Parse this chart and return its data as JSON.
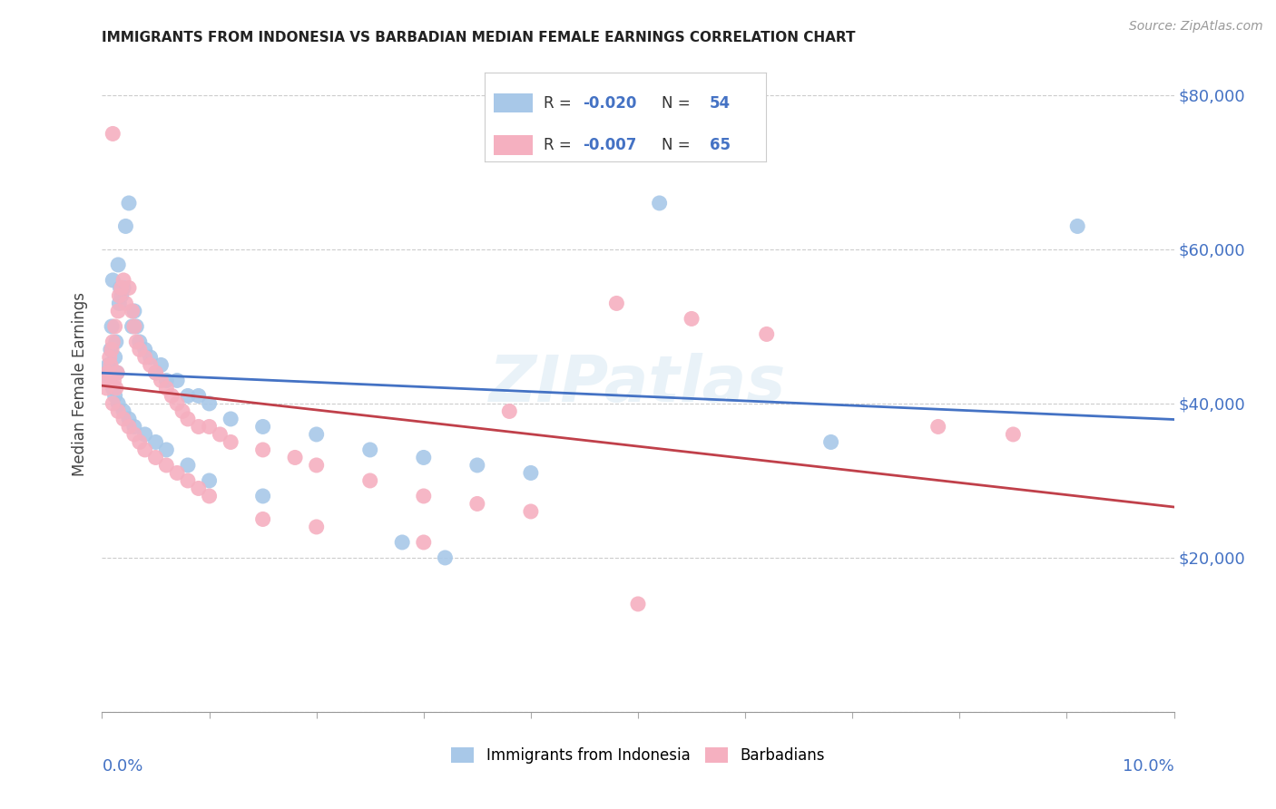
{
  "title": "IMMIGRANTS FROM INDONESIA VS BARBADIAN MEDIAN FEMALE EARNINGS CORRELATION CHART",
  "source": "Source: ZipAtlas.com",
  "ylabel": "Median Female Earnings",
  "xlim": [
    0.0,
    10.0
  ],
  "ylim": [
    0,
    85000
  ],
  "yticks": [
    0,
    20000,
    40000,
    60000,
    80000
  ],
  "ytick_labels": [
    "",
    "$20,000",
    "$40,000",
    "$60,000",
    "$80,000"
  ],
  "blue_color": "#a8c8e8",
  "pink_color": "#f5b0c0",
  "blue_line_color": "#4472c4",
  "pink_line_color": "#c0404a",
  "right_label_color": "#4472c4",
  "background_color": "#ffffff",
  "grid_color": "#cccccc",
  "title_color": "#222222",
  "watermark_text": "ZIPatlas",
  "legend_R1": "-0.020",
  "legend_N1": "54",
  "legend_R2": "-0.007",
  "legend_N2": "65",
  "blue_x": [
    0.05,
    0.06,
    0.07,
    0.08,
    0.09,
    0.1,
    0.11,
    0.12,
    0.13,
    0.14,
    0.15,
    0.16,
    0.17,
    0.18,
    0.2,
    0.22,
    0.25,
    0.28,
    0.3,
    0.32,
    0.35,
    0.4,
    0.45,
    0.5,
    0.55,
    0.6,
    0.7,
    0.8,
    0.9,
    1.0,
    1.2,
    1.5,
    2.0,
    2.5,
    3.0,
    3.5,
    4.0,
    5.2,
    9.1,
    0.1,
    0.12,
    0.15,
    0.2,
    0.25,
    0.3,
    0.4,
    0.5,
    0.6,
    0.8,
    1.0,
    1.5,
    2.8,
    3.2,
    6.8
  ],
  "blue_y": [
    44000,
    45000,
    43000,
    47000,
    50000,
    56000,
    42000,
    46000,
    48000,
    44000,
    58000,
    53000,
    55000,
    54000,
    55000,
    63000,
    66000,
    50000,
    52000,
    50000,
    48000,
    47000,
    46000,
    44000,
    45000,
    43000,
    43000,
    41000,
    41000,
    40000,
    38000,
    37000,
    36000,
    34000,
    33000,
    32000,
    31000,
    66000,
    63000,
    42000,
    41000,
    40000,
    39000,
    38000,
    37000,
    36000,
    35000,
    34000,
    32000,
    30000,
    28000,
    22000,
    20000,
    35000
  ],
  "pink_x": [
    0.04,
    0.05,
    0.06,
    0.07,
    0.08,
    0.09,
    0.1,
    0.11,
    0.12,
    0.13,
    0.14,
    0.15,
    0.16,
    0.18,
    0.2,
    0.22,
    0.25,
    0.28,
    0.3,
    0.32,
    0.35,
    0.4,
    0.45,
    0.5,
    0.55,
    0.6,
    0.65,
    0.7,
    0.75,
    0.8,
    0.9,
    1.0,
    1.1,
    1.2,
    1.5,
    1.8,
    2.0,
    2.5,
    3.0,
    3.5,
    4.0,
    0.1,
    0.15,
    0.2,
    0.25,
    0.3,
    0.35,
    0.4,
    0.5,
    0.6,
    0.7,
    0.8,
    0.9,
    1.0,
    1.5,
    2.0,
    3.0,
    5.0,
    7.8,
    8.5,
    4.8,
    5.5,
    6.2,
    3.8,
    0.1
  ],
  "pink_y": [
    42000,
    44000,
    43000,
    46000,
    45000,
    47000,
    48000,
    43000,
    50000,
    42000,
    44000,
    52000,
    54000,
    55000,
    56000,
    53000,
    55000,
    52000,
    50000,
    48000,
    47000,
    46000,
    45000,
    44000,
    43000,
    42000,
    41000,
    40000,
    39000,
    38000,
    37000,
    37000,
    36000,
    35000,
    34000,
    33000,
    32000,
    30000,
    28000,
    27000,
    26000,
    40000,
    39000,
    38000,
    37000,
    36000,
    35000,
    34000,
    33000,
    32000,
    31000,
    30000,
    29000,
    28000,
    25000,
    24000,
    22000,
    14000,
    37000,
    36000,
    53000,
    51000,
    49000,
    39000,
    75000
  ]
}
